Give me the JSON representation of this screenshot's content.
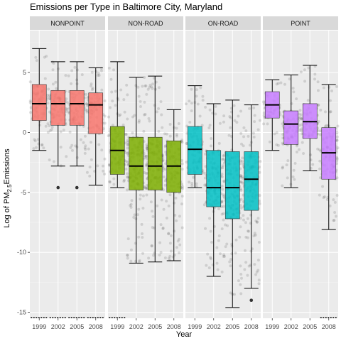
{
  "chart_data": {
    "type": "boxplot",
    "title": "Emissions per Type in Baltimore City, Maryland",
    "xlabel": "Year",
    "ylabel": {
      "prefix": "Log of PM",
      "subscript": "2.5",
      "suffix": "Emissions"
    },
    "ylim": [
      -15.5,
      8.5
    ],
    "yticks": [
      5,
      0,
      -5,
      -10,
      -15
    ],
    "categories": [
      "1999",
      "2002",
      "2005",
      "2008"
    ],
    "grid": true,
    "legend": "none",
    "panels": [
      {
        "label": "NONPOINT",
        "color": "#F8766D",
        "boxes": [
          {
            "year": "1999",
            "whisker_low": -1.5,
            "q1": 1.0,
            "median": 2.4,
            "q3": 4.0,
            "whisker_high": 7.0,
            "outliers": [
              -15.6
            ]
          },
          {
            "year": "2002",
            "whisker_low": -2.8,
            "q1": 0.6,
            "median": 2.4,
            "q3": 3.5,
            "whisker_high": 5.9,
            "outliers": [
              -4.6,
              -15.6
            ]
          },
          {
            "year": "2005",
            "whisker_low": -2.8,
            "q1": 0.6,
            "median": 2.4,
            "q3": 3.5,
            "whisker_high": 5.9,
            "outliers": [
              -4.6,
              -15.6
            ]
          },
          {
            "year": "2008",
            "whisker_low": -4.4,
            "q1": -0.1,
            "median": 2.3,
            "q3": 3.3,
            "whisker_high": 5.4,
            "outliers": [
              -15.6
            ]
          }
        ]
      },
      {
        "label": "NON-ROAD",
        "color": "#7CAE00",
        "boxes": [
          {
            "year": "1999",
            "whisker_low": -4.6,
            "q1": -3.5,
            "median": -1.5,
            "q3": 0.5,
            "whisker_high": 5.9,
            "outliers": [
              -15.6
            ]
          },
          {
            "year": "2002",
            "whisker_low": -10.9,
            "q1": -4.8,
            "median": -2.8,
            "q3": -0.4,
            "whisker_high": 4.6,
            "outliers": []
          },
          {
            "year": "2005",
            "whisker_low": -10.8,
            "q1": -4.8,
            "median": -2.8,
            "q3": -0.4,
            "whisker_high": 4.7,
            "outliers": []
          },
          {
            "year": "2008",
            "whisker_low": -10.7,
            "q1": -5.0,
            "median": -2.8,
            "q3": -0.7,
            "whisker_high": 1.9,
            "outliers": []
          }
        ]
      },
      {
        "label": "ON-ROAD",
        "color": "#00BFC4",
        "boxes": [
          {
            "year": "1999",
            "whisker_low": -4.6,
            "q1": -3.5,
            "median": -1.4,
            "q3": 0.5,
            "whisker_high": 3.9,
            "outliers": []
          },
          {
            "year": "2002",
            "whisker_low": -12.0,
            "q1": -6.2,
            "median": -4.6,
            "q3": -1.5,
            "whisker_high": 2.4,
            "outliers": []
          },
          {
            "year": "2005",
            "whisker_low": -14.6,
            "q1": -7.2,
            "median": -4.6,
            "q3": -1.6,
            "whisker_high": 2.7,
            "outliers": []
          },
          {
            "year": "2008",
            "whisker_low": -13.0,
            "q1": -6.5,
            "median": -3.9,
            "q3": -1.6,
            "whisker_high": 2.3,
            "outliers": [
              -14.0
            ]
          }
        ]
      },
      {
        "label": "POINT",
        "color": "#C77CFF",
        "boxes": [
          {
            "year": "1999",
            "whisker_low": -1.5,
            "q1": 1.2,
            "median": 2.3,
            "q3": 3.4,
            "whisker_high": 4.4,
            "outliers": []
          },
          {
            "year": "2002",
            "whisker_low": -4.6,
            "q1": -1.0,
            "median": 0.7,
            "q3": 1.8,
            "whisker_high": 4.8,
            "outliers": []
          },
          {
            "year": "2005",
            "whisker_low": -3.2,
            "q1": -0.5,
            "median": 0.9,
            "q3": 2.4,
            "whisker_high": 5.6,
            "outliers": []
          },
          {
            "year": "2008",
            "whisker_low": -8.1,
            "q1": -3.9,
            "median": -1.7,
            "q3": 0.4,
            "whisker_high": 4.0,
            "outliers": [
              -15.6
            ]
          }
        ]
      }
    ]
  }
}
